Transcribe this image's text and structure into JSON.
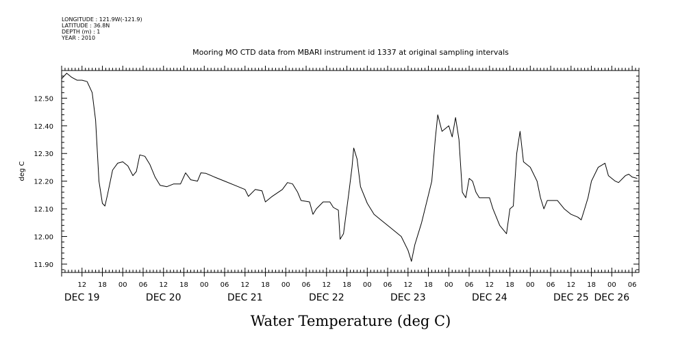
{
  "header": {
    "longitude": "LONGITUDE : 121.9W(-121.9)",
    "latitude": "LATITUDE : 36.8N",
    "depth": "DEPTH (m) : 1",
    "year": "YEAR : 2010"
  },
  "chart_data": {
    "type": "line",
    "title": "Mooring MO CTD data from MBARI instrument id 1337 at original sampling intervals",
    "xlabel": "Water Temperature (deg C)",
    "ylabel": "deg C",
    "ylim": [
      11.87,
      12.6
    ],
    "yticks": [
      11.9,
      12.0,
      12.1,
      12.2,
      12.3,
      12.4,
      12.5
    ],
    "ytick_labels": [
      "11.90",
      "12.00",
      "12.10",
      "12.20",
      "12.30",
      "12.40",
      "12.50"
    ],
    "xlim": [
      "2010-12-19T06:00",
      "2010-12-26T08:00"
    ],
    "hour_ticks": [
      {
        "t": "2010-12-19T12:00",
        "label": "12"
      },
      {
        "t": "2010-12-19T18:00",
        "label": "18"
      },
      {
        "t": "2010-12-20T00:00",
        "label": "00"
      },
      {
        "t": "2010-12-20T06:00",
        "label": "06"
      },
      {
        "t": "2010-12-20T12:00",
        "label": "12"
      },
      {
        "t": "2010-12-20T18:00",
        "label": "18"
      },
      {
        "t": "2010-12-21T00:00",
        "label": "00"
      },
      {
        "t": "2010-12-21T06:00",
        "label": "06"
      },
      {
        "t": "2010-12-21T12:00",
        "label": "12"
      },
      {
        "t": "2010-12-21T18:00",
        "label": "18"
      },
      {
        "t": "2010-12-22T00:00",
        "label": "00"
      },
      {
        "t": "2010-12-22T06:00",
        "label": "06"
      },
      {
        "t": "2010-12-22T12:00",
        "label": "12"
      },
      {
        "t": "2010-12-22T18:00",
        "label": "18"
      },
      {
        "t": "2010-12-23T00:00",
        "label": "00"
      },
      {
        "t": "2010-12-23T06:00",
        "label": "06"
      },
      {
        "t": "2010-12-23T12:00",
        "label": "12"
      },
      {
        "t": "2010-12-23T18:00",
        "label": "18"
      },
      {
        "t": "2010-12-24T00:00",
        "label": "00"
      },
      {
        "t": "2010-12-24T06:00",
        "label": "06"
      },
      {
        "t": "2010-12-24T12:00",
        "label": "12"
      },
      {
        "t": "2010-12-24T18:00",
        "label": "18"
      },
      {
        "t": "2010-12-25T00:00",
        "label": "00"
      },
      {
        "t": "2010-12-25T06:00",
        "label": "06"
      },
      {
        "t": "2010-12-25T12:00",
        "label": "12"
      },
      {
        "t": "2010-12-25T18:00",
        "label": "18"
      },
      {
        "t": "2010-12-26T00:00",
        "label": "00"
      },
      {
        "t": "2010-12-26T06:00",
        "label": "06"
      }
    ],
    "day_labels": [
      {
        "t": "2010-12-19T12:00",
        "label": "DEC 19"
      },
      {
        "t": "2010-12-20T12:00",
        "label": "DEC 20"
      },
      {
        "t": "2010-12-21T12:00",
        "label": "DEC 21"
      },
      {
        "t": "2010-12-22T12:00",
        "label": "DEC 22"
      },
      {
        "t": "2010-12-23T12:00",
        "label": "DEC 23"
      },
      {
        "t": "2010-12-24T12:00",
        "label": "DEC 24"
      },
      {
        "t": "2010-12-25T12:00",
        "label": "DEC 25"
      },
      {
        "t": "2010-12-26T00:00",
        "label": "DEC 26"
      }
    ],
    "series": [
      {
        "points": [
          [
            "2010-12-19T06:00",
            12.57
          ],
          [
            "2010-12-19T07:30",
            12.59
          ],
          [
            "2010-12-19T09:00",
            12.575
          ],
          [
            "2010-12-19T10:30",
            12.565
          ],
          [
            "2010-12-19T12:00",
            12.565
          ],
          [
            "2010-12-19T13:30",
            12.56
          ],
          [
            "2010-12-19T15:00",
            12.52
          ],
          [
            "2010-12-19T16:00",
            12.42
          ],
          [
            "2010-12-19T17:00",
            12.2
          ],
          [
            "2010-12-19T18:00",
            12.12
          ],
          [
            "2010-12-19T18:45",
            12.11
          ],
          [
            "2010-12-19T19:30",
            12.15
          ],
          [
            "2010-12-19T21:00",
            12.24
          ],
          [
            "2010-12-19T22:30",
            12.265
          ],
          [
            "2010-12-20T00:00",
            12.27
          ],
          [
            "2010-12-20T01:30",
            12.255
          ],
          [
            "2010-12-20T03:00",
            12.22
          ],
          [
            "2010-12-20T04:00",
            12.235
          ],
          [
            "2010-12-20T05:00",
            12.295
          ],
          [
            "2010-12-20T06:30",
            12.29
          ],
          [
            "2010-12-20T08:00",
            12.26
          ],
          [
            "2010-12-20T09:30",
            12.215
          ],
          [
            "2010-12-20T11:00",
            12.185
          ],
          [
            "2010-12-20T13:00",
            12.18
          ],
          [
            "2010-12-20T15:00",
            12.19
          ],
          [
            "2010-12-20T17:00",
            12.19
          ],
          [
            "2010-12-20T18:30",
            12.23
          ],
          [
            "2010-12-20T20:00",
            12.205
          ],
          [
            "2010-12-20T22:00",
            12.2
          ],
          [
            "2010-12-20T23:00",
            12.23
          ],
          [
            "2010-12-21T00:30",
            12.228
          ],
          [
            "2010-12-21T03:00",
            12.215
          ],
          [
            "2010-12-21T06:00",
            12.2
          ],
          [
            "2010-12-21T09:00",
            12.185
          ],
          [
            "2010-12-21T12:00",
            12.17
          ],
          [
            "2010-12-21T13:00",
            12.145
          ],
          [
            "2010-12-21T15:00",
            12.17
          ],
          [
            "2010-12-21T17:00",
            12.165
          ],
          [
            "2010-12-21T18:00",
            12.125
          ],
          [
            "2010-12-21T20:00",
            12.145
          ],
          [
            "2010-12-21T23:00",
            12.17
          ],
          [
            "2010-12-22T00:30",
            12.195
          ],
          [
            "2010-12-22T02:00",
            12.19
          ],
          [
            "2010-12-22T03:30",
            12.16
          ],
          [
            "2010-12-22T04:30",
            12.13
          ],
          [
            "2010-12-22T07:00",
            12.125
          ],
          [
            "2010-12-22T08:00",
            12.08
          ],
          [
            "2010-12-22T09:00",
            12.1
          ],
          [
            "2010-12-22T11:00",
            12.125
          ],
          [
            "2010-12-22T13:00",
            12.125
          ],
          [
            "2010-12-22T14:00",
            12.105
          ],
          [
            "2010-12-22T15:30",
            12.095
          ],
          [
            "2010-12-22T16:00",
            11.99
          ],
          [
            "2010-12-22T17:00",
            12.01
          ],
          [
            "2010-12-22T18:30",
            12.15
          ],
          [
            "2010-12-22T19:30",
            12.25
          ],
          [
            "2010-12-22T20:00",
            12.32
          ],
          [
            "2010-12-22T21:00",
            12.28
          ],
          [
            "2010-12-22T22:00",
            12.18
          ],
          [
            "2010-12-23T00:00",
            12.12
          ],
          [
            "2010-12-23T02:00",
            12.08
          ],
          [
            "2010-12-23T04:00",
            12.06
          ],
          [
            "2010-12-23T06:00",
            12.04
          ],
          [
            "2010-12-23T08:00",
            12.02
          ],
          [
            "2010-12-23T10:00",
            12.0
          ],
          [
            "2010-12-23T12:00",
            11.95
          ],
          [
            "2010-12-23T13:00",
            11.91
          ],
          [
            "2010-12-23T14:00",
            11.97
          ],
          [
            "2010-12-23T16:00",
            12.05
          ],
          [
            "2010-12-23T18:00",
            12.15
          ],
          [
            "2010-12-23T19:00",
            12.2
          ],
          [
            "2010-12-23T20:00",
            12.35
          ],
          [
            "2010-12-23T20:45",
            12.44
          ],
          [
            "2010-12-23T22:00",
            12.38
          ],
          [
            "2010-12-24T00:00",
            12.4
          ],
          [
            "2010-12-24T01:00",
            12.36
          ],
          [
            "2010-12-24T02:00",
            12.43
          ],
          [
            "2010-12-24T03:00",
            12.35
          ],
          [
            "2010-12-24T04:00",
            12.16
          ],
          [
            "2010-12-24T05:00",
            12.14
          ],
          [
            "2010-12-24T06:00",
            12.21
          ],
          [
            "2010-12-24T07:00",
            12.2
          ],
          [
            "2010-12-24T08:00",
            12.16
          ],
          [
            "2010-12-24T09:00",
            12.14
          ],
          [
            "2010-12-24T12:00",
            12.14
          ],
          [
            "2010-12-24T13:00",
            12.1
          ],
          [
            "2010-12-24T15:00",
            12.04
          ],
          [
            "2010-12-24T17:00",
            12.01
          ],
          [
            "2010-12-24T18:00",
            12.1
          ],
          [
            "2010-12-24T19:00",
            12.11
          ],
          [
            "2010-12-24T20:00",
            12.3
          ],
          [
            "2010-12-24T21:00",
            12.38
          ],
          [
            "2010-12-24T22:00",
            12.27
          ],
          [
            "2010-12-25T00:00",
            12.25
          ],
          [
            "2010-12-25T02:00",
            12.2
          ],
          [
            "2010-12-25T03:00",
            12.14
          ],
          [
            "2010-12-25T04:00",
            12.1
          ],
          [
            "2010-12-25T05:00",
            12.13
          ],
          [
            "2010-12-25T08:00",
            12.13
          ],
          [
            "2010-12-25T10:00",
            12.1
          ],
          [
            "2010-12-25T12:00",
            12.08
          ],
          [
            "2010-12-25T14:00",
            12.07
          ],
          [
            "2010-12-25T15:00",
            12.06
          ],
          [
            "2010-12-25T16:00",
            12.1
          ],
          [
            "2010-12-25T17:00",
            12.14
          ],
          [
            "2010-12-25T18:00",
            12.2
          ],
          [
            "2010-12-25T20:00",
            12.25
          ],
          [
            "2010-12-25T22:00",
            12.265
          ],
          [
            "2010-12-25T23:00",
            12.22
          ],
          [
            "2010-12-26T01:00",
            12.2
          ],
          [
            "2010-12-26T02:00",
            12.195
          ],
          [
            "2010-12-26T04:00",
            12.22
          ],
          [
            "2010-12-26T05:00",
            12.225
          ],
          [
            "2010-12-26T06:00",
            12.215
          ],
          [
            "2010-12-26T07:30",
            12.21
          ]
        ]
      }
    ]
  }
}
